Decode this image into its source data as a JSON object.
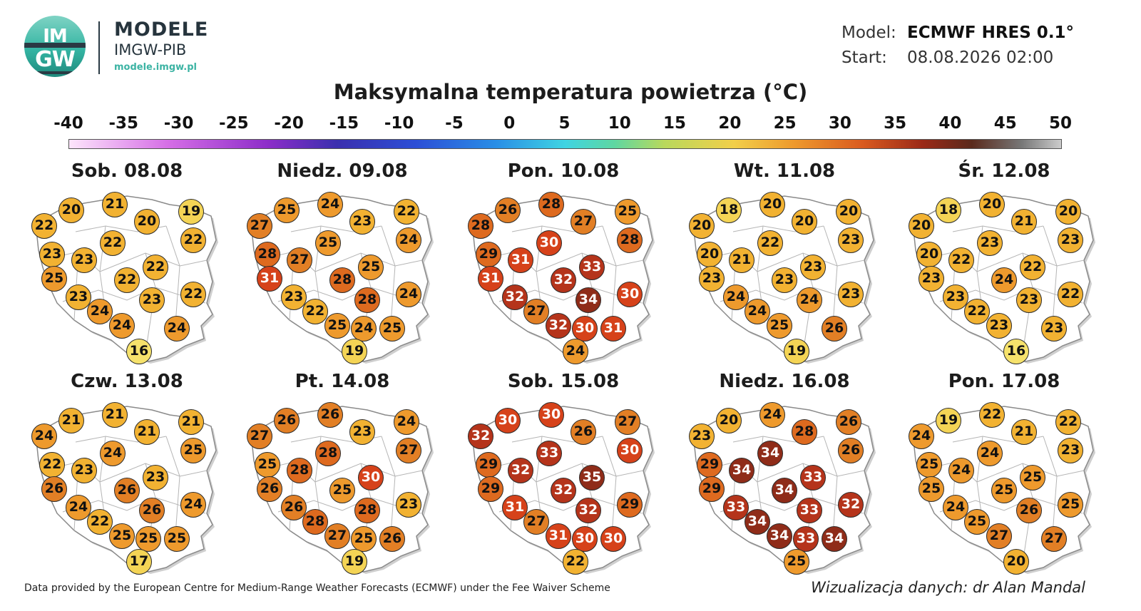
{
  "header": {
    "logo_text_top": "IM",
    "logo_text_bottom": "GW",
    "brand_name": "MODELE",
    "brand_sub": "IMGW-PIB",
    "brand_url": "modele.imgw.pl",
    "model_label": "Model:",
    "model_value": "ECMWF HRES 0.1°",
    "start_label": "Start:",
    "start_value": "08.08.2026 02:00"
  },
  "title": "Maksymalna temperatura powietrza (°C)",
  "scale": {
    "ticks": [
      "-40",
      "-35",
      "-30",
      "-25",
      "-20",
      "-15",
      "-10",
      "-5",
      "0",
      "5",
      "10",
      "15",
      "20",
      "25",
      "30",
      "35",
      "40",
      "45",
      "50"
    ],
    "min": -40,
    "max": 50
  },
  "days": [
    {
      "label": "Sob. 08.08",
      "values": [
        22,
        20,
        21,
        20,
        19,
        23,
        22,
        22,
        23,
        25,
        22,
        23,
        22,
        22,
        24,
        23,
        24,
        24,
        16
      ]
    },
    {
      "label": "Niedz. 09.08",
      "values": [
        27,
        25,
        24,
        23,
        22,
        28,
        25,
        24,
        27,
        31,
        25,
        23,
        28,
        24,
        22,
        28,
        25,
        25,
        24,
        19
      ]
    },
    {
      "label": "Pon. 10.08",
      "values": [
        28,
        26,
        28,
        27,
        25,
        29,
        30,
        28,
        31,
        31,
        33,
        32,
        32,
        30,
        27,
        34,
        32,
        31,
        30,
        24
      ]
    },
    {
      "label": "Wt. 11.08",
      "values": [
        20,
        18,
        20,
        20,
        20,
        20,
        22,
        23,
        21,
        23,
        23,
        24,
        23,
        23,
        24,
        24,
        25,
        26,
        19
      ]
    },
    {
      "label": "Śr. 12.08",
      "values": [
        20,
        18,
        20,
        21,
        20,
        20,
        23,
        23,
        22,
        23,
        22,
        23,
        24,
        22,
        22,
        23,
        23,
        23,
        16
      ]
    },
    {
      "label": "Czw. 13.08",
      "values": [
        24,
        21,
        21,
        21,
        21,
        22,
        24,
        25,
        23,
        26,
        23,
        24,
        26,
        24,
        22,
        26,
        25,
        25,
        25,
        17
      ]
    },
    {
      "label": "Pt. 14.08",
      "values": [
        27,
        26,
        26,
        23,
        24,
        25,
        28,
        27,
        28,
        26,
        30,
        26,
        25,
        23,
        28,
        28,
        27,
        26,
        25,
        19
      ]
    },
    {
      "label": "Sob. 15.08",
      "values": [
        32,
        30,
        30,
        26,
        27,
        29,
        33,
        30,
        32,
        29,
        35,
        31,
        32,
        29,
        27,
        32,
        31,
        30,
        30,
        22
      ]
    },
    {
      "label": "Niedz. 16.08",
      "values": [
        23,
        20,
        24,
        28,
        26,
        29,
        34,
        26,
        34,
        29,
        33,
        33,
        34,
        32,
        34,
        33,
        34,
        34,
        33,
        25
      ]
    },
    {
      "label": "Pon. 17.08",
      "values": [
        24,
        19,
        22,
        21,
        22,
        25,
        24,
        23,
        24,
        25,
        25,
        24,
        25,
        25,
        25,
        26,
        27,
        27,
        20
      ]
    }
  ],
  "colors": {
    "t16": "#f6e26c",
    "t19": "#f4d455",
    "t20_23": "#f2b232",
    "t24_25": "#ee9a2d",
    "t26_27": "#e27f25",
    "t28_29": "#de6a1f",
    "t30_31": "#d6421a",
    "t32_33": "#b5341b",
    "t34_35": "#8f2c19"
  },
  "footer": {
    "credit_left": "Data provided by the European Centre for Medium-Range Weather Forecasts (ECMWF) under the Fee Waiver Scheme",
    "credit_right": "Wizualizacja danych: dr Alan Mandal"
  }
}
